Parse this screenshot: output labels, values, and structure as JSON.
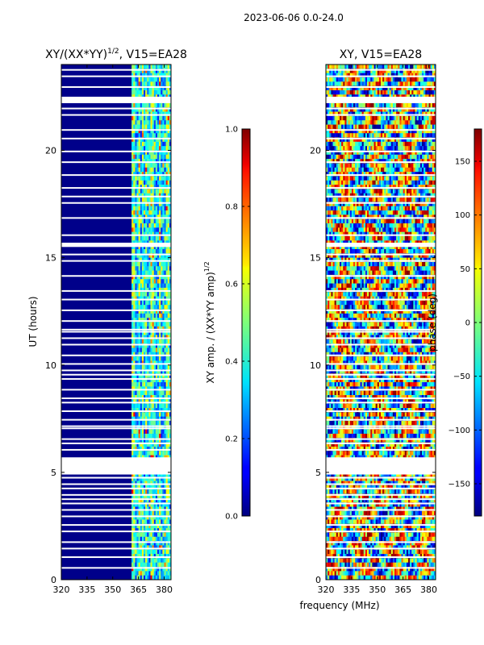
{
  "chart_data": {
    "suptitle": "2023-06-06 0.0-24.0",
    "shared_xlabel": "frequency (MHz)",
    "panels": [
      {
        "type": "heatmap",
        "title_base": "XY/(XX*YY)",
        "title_exp": "1/2",
        "title_suffix": ", V15=EA28",
        "ylabel": "UT (hours)",
        "xlim": [
          320,
          384
        ],
        "ylim": [
          0,
          24
        ],
        "xticks": [
          {
            "v": 320,
            "label": "320"
          },
          {
            "v": 335,
            "label": "335"
          },
          {
            "v": 350,
            "label": "350"
          },
          {
            "v": 365,
            "label": "365"
          },
          {
            "v": 380,
            "label": "380"
          }
        ],
        "yticks": [
          {
            "v": 0,
            "label": "0"
          },
          {
            "v": 5,
            "label": "5"
          },
          {
            "v": 10,
            "label": "10"
          },
          {
            "v": 15,
            "label": "15"
          },
          {
            "v": 20,
            "label": "20"
          }
        ],
        "colorbar": {
          "label_base": "XY amp. / (XX*YY amp)",
          "label_exp": "1/2",
          "range": [
            0.0,
            1.0
          ],
          "ticks": [
            {
              "v": 0.0,
              "label": "0.0"
            },
            {
              "v": 0.2,
              "label": "0.2"
            },
            {
              "v": 0.4,
              "label": "0.4"
            },
            {
              "v": 0.6,
              "label": "0.6"
            },
            {
              "v": 0.8,
              "label": "0.8"
            },
            {
              "v": 1.0,
              "label": "1.0"
            }
          ]
        }
      },
      {
        "type": "heatmap",
        "title_base": "XY, V15=EA28",
        "title_exp": "",
        "title_suffix": "",
        "ylabel": "",
        "xlim": [
          320,
          384
        ],
        "ylim": [
          0,
          24
        ],
        "xticks": [
          {
            "v": 320,
            "label": "320"
          },
          {
            "v": 335,
            "label": "335"
          },
          {
            "v": 350,
            "label": "350"
          },
          {
            "v": 365,
            "label": "365"
          },
          {
            "v": 380,
            "label": "380"
          }
        ],
        "yticks": [
          {
            "v": 0,
            "label": "0"
          },
          {
            "v": 5,
            "label": "5"
          },
          {
            "v": 10,
            "label": "10"
          },
          {
            "v": 15,
            "label": "15"
          },
          {
            "v": 20,
            "label": "20"
          }
        ],
        "colorbar": {
          "label_base": "phase (deg)",
          "label_exp": "",
          "range": [
            -180,
            180
          ],
          "ticks": [
            {
              "v": -150,
              "label": "−150"
            },
            {
              "v": -100,
              "label": "−100"
            },
            {
              "v": -50,
              "label": "−50"
            },
            {
              "v": 0,
              "label": "0"
            },
            {
              "v": 50,
              "label": "50"
            },
            {
              "v": 100,
              "label": "100"
            },
            {
              "v": 150,
              "label": "150"
            }
          ]
        }
      }
    ],
    "flagged_ut_hours": [
      0.55,
      1.05,
      1.45,
      1.75,
      2.25,
      2.55,
      2.95,
      3.25,
      3.55,
      3.75,
      3.95,
      4.25,
      4.45,
      4.75,
      5.15,
      5.25,
      5.35,
      5.45,
      6.05,
      6.35,
      6.55,
      7.05,
      7.15,
      7.45,
      7.85,
      8.25,
      8.45,
      8.85,
      9.35,
      9.55,
      9.75,
      10.05,
      10.45,
      10.95,
      11.25,
      11.55,
      11.65,
      12.05,
      12.55,
      13.05,
      13.45,
      14.15,
      14.85,
      15.15,
      15.55,
      15.65,
      16.05,
      16.85,
      17.55,
      17.85,
      18.25,
      18.85,
      19.45,
      19.95,
      20.55,
      20.95,
      21.65,
      21.95,
      22.35,
      22.45,
      22.95,
      23.45,
      23.75
    ]
  }
}
